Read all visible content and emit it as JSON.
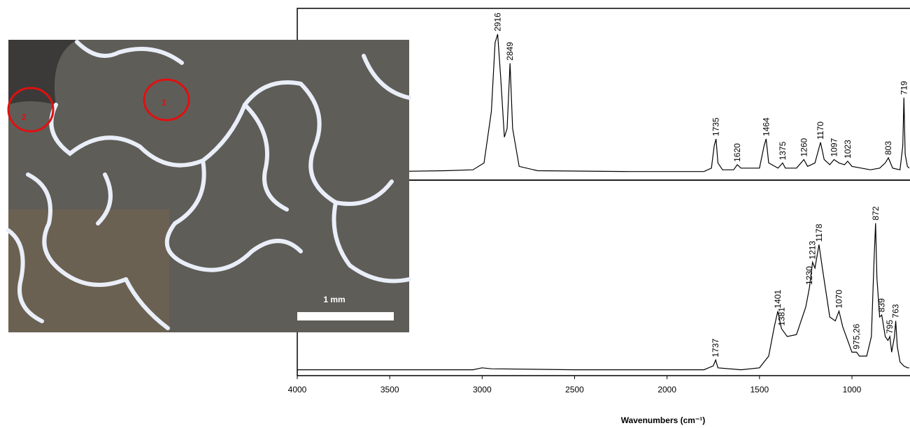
{
  "image": {
    "markers": [
      "1",
      "2"
    ],
    "scale_bar": "1 mm"
  },
  "chart_data": [
    {
      "type": "line",
      "color": "#000000",
      "x": [
        4000,
        3500,
        3200,
        3050,
        2990,
        2950,
        2930,
        2916,
        2900,
        2880,
        2865,
        2849,
        2835,
        2800,
        2700,
        2200,
        1800,
        1760,
        1745,
        1735,
        1725,
        1700,
        1640,
        1620,
        1600,
        1500,
        1475,
        1464,
        1450,
        1400,
        1375,
        1360,
        1300,
        1260,
        1240,
        1200,
        1170,
        1150,
        1120,
        1097,
        1070,
        1040,
        1023,
        1000,
        900,
        850,
        820,
        803,
        780,
        740,
        725,
        719,
        712,
        700,
        690
      ],
      "values": [
        0.05,
        0.05,
        0.055,
        0.06,
        0.1,
        0.4,
        0.8,
        0.85,
        0.6,
        0.25,
        0.3,
        0.68,
        0.3,
        0.08,
        0.055,
        0.05,
        0.05,
        0.07,
        0.2,
        0.24,
        0.1,
        0.06,
        0.06,
        0.09,
        0.07,
        0.07,
        0.2,
        0.24,
        0.1,
        0.07,
        0.1,
        0.07,
        0.07,
        0.12,
        0.08,
        0.1,
        0.22,
        0.12,
        0.09,
        0.12,
        0.1,
        0.09,
        0.11,
        0.08,
        0.06,
        0.07,
        0.1,
        0.13,
        0.07,
        0.06,
        0.2,
        0.48,
        0.15,
        0.08,
        0.07
      ],
      "xlim": [
        4000,
        686
      ],
      "ylim": [
        0,
        1
      ],
      "annotations": [
        2916,
        2849,
        1735,
        1620,
        1464,
        1375,
        1260,
        1170,
        1097,
        1023,
        803,
        719
      ]
    },
    {
      "type": "line",
      "color": "#000000",
      "x": [
        4000,
        3500,
        3050,
        3000,
        2950,
        2500,
        1800,
        1750,
        1737,
        1725,
        1600,
        1500,
        1450,
        1420,
        1401,
        1390,
        1381,
        1350,
        1300,
        1250,
        1240,
        1230,
        1213,
        1200,
        1178,
        1160,
        1120,
        1090,
        1070,
        1050,
        1000,
        975,
        960,
        920,
        895,
        880,
        872,
        865,
        850,
        839,
        820,
        805,
        795,
        785,
        770,
        763,
        755,
        740,
        720,
        700,
        690
      ],
      "values": [
        0.03,
        0.03,
        0.03,
        0.04,
        0.035,
        0.03,
        0.03,
        0.05,
        0.08,
        0.04,
        0.03,
        0.04,
        0.1,
        0.25,
        0.33,
        0.28,
        0.24,
        0.2,
        0.21,
        0.35,
        0.4,
        0.45,
        0.58,
        0.55,
        0.67,
        0.55,
        0.3,
        0.28,
        0.33,
        0.25,
        0.12,
        0.12,
        0.1,
        0.1,
        0.2,
        0.6,
        0.78,
        0.5,
        0.3,
        0.31,
        0.2,
        0.18,
        0.2,
        0.12,
        0.2,
        0.28,
        0.15,
        0.07,
        0.05,
        0.04,
        0.04
      ],
      "xlim": [
        4000,
        686
      ],
      "ylim": [
        0,
        1
      ],
      "xticks": [
        4000,
        3500,
        3000,
        2500,
        2000,
        1500,
        1000
      ],
      "xlabel": "Wavenumbers (cm⁻¹)",
      "annotations": [
        1737,
        1401,
        1381,
        1230,
        1213,
        1178,
        1070,
        {
          "value": 975.26,
          "label": "975,26"
        },
        872,
        839,
        795,
        763
      ]
    }
  ]
}
